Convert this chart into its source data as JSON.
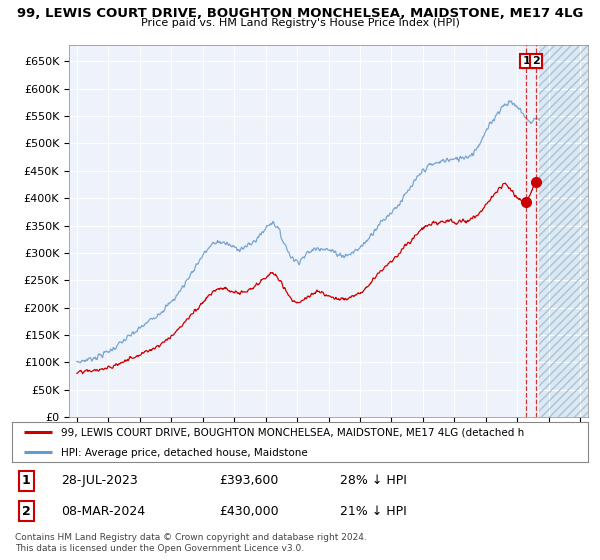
{
  "title": "99, LEWIS COURT DRIVE, BOUGHTON MONCHELSEA, MAIDSTONE, ME17 4LG",
  "subtitle": "Price paid vs. HM Land Registry's House Price Index (HPI)",
  "ylim": [
    0,
    680000
  ],
  "yticks": [
    0,
    50000,
    100000,
    150000,
    200000,
    250000,
    300000,
    350000,
    400000,
    450000,
    500000,
    550000,
    600000,
    650000
  ],
  "ytick_labels": [
    "£0",
    "£50K",
    "£100K",
    "£150K",
    "£200K",
    "£250K",
    "£300K",
    "£350K",
    "£400K",
    "£450K",
    "£500K",
    "£550K",
    "£600K",
    "£650K"
  ],
  "hpi_color": "#6699cc",
  "price_color": "#cc0000",
  "marker_color": "#cc0000",
  "dashed_color": "#cc2222",
  "background_plot": "#eef2fa",
  "grid_color": "#ffffff",
  "legend_label_price": "99, LEWIS COURT DRIVE, BOUGHTON MONCHELSEA, MAIDSTONE, ME17 4LG (detached h",
  "legend_label_hpi": "HPI: Average price, detached house, Maidstone",
  "transaction1_label": "1",
  "transaction1_date": "28-JUL-2023",
  "transaction1_price": "£393,600",
  "transaction1_hpi": "28% ↓ HPI",
  "transaction2_label": "2",
  "transaction2_date": "08-MAR-2024",
  "transaction2_price": "£430,000",
  "transaction2_hpi": "21% ↓ HPI",
  "copyright_text": "Contains HM Land Registry data © Crown copyright and database right 2024.\nThis data is licensed under the Open Government Licence v3.0.",
  "xlim_start": 1994.5,
  "xlim_end": 2027.5,
  "xticks": [
    1995,
    1997,
    1999,
    2001,
    2003,
    2005,
    2007,
    2009,
    2011,
    2013,
    2015,
    2017,
    2019,
    2021,
    2023,
    2025,
    2027
  ],
  "transaction1_year": 2023.57,
  "transaction2_year": 2024.18,
  "transaction1_value": 393600,
  "transaction2_value": 430000,
  "hatch_start": 2024.4,
  "hpi_anchors": [
    [
      1995.0,
      100000
    ],
    [
      1996.0,
      108000
    ],
    [
      1997.0,
      120000
    ],
    [
      1998.0,
      140000
    ],
    [
      1999.0,
      162000
    ],
    [
      2000.0,
      185000
    ],
    [
      2001.0,
      210000
    ],
    [
      2002.0,
      250000
    ],
    [
      2003.0,
      295000
    ],
    [
      2004.0,
      320000
    ],
    [
      2005.0,
      310000
    ],
    [
      2006.0,
      315000
    ],
    [
      2007.0,
      345000
    ],
    [
      2007.5,
      355000
    ],
    [
      2008.0,
      330000
    ],
    [
      2008.5,
      300000
    ],
    [
      2009.0,
      285000
    ],
    [
      2009.5,
      295000
    ],
    [
      2010.0,
      305000
    ],
    [
      2010.5,
      310000
    ],
    [
      2011.0,
      305000
    ],
    [
      2011.5,
      300000
    ],
    [
      2012.0,
      295000
    ],
    [
      2012.5,
      300000
    ],
    [
      2013.0,
      310000
    ],
    [
      2013.5,
      325000
    ],
    [
      2014.0,
      345000
    ],
    [
      2014.5,
      360000
    ],
    [
      2015.0,
      375000
    ],
    [
      2015.5,
      390000
    ],
    [
      2016.0,
      410000
    ],
    [
      2016.5,
      430000
    ],
    [
      2017.0,
      450000
    ],
    [
      2017.5,
      460000
    ],
    [
      2018.0,
      465000
    ],
    [
      2018.5,
      470000
    ],
    [
      2019.0,
      470000
    ],
    [
      2019.5,
      475000
    ],
    [
      2020.0,
      478000
    ],
    [
      2020.5,
      495000
    ],
    [
      2021.0,
      520000
    ],
    [
      2021.5,
      545000
    ],
    [
      2022.0,
      565000
    ],
    [
      2022.5,
      575000
    ],
    [
      2022.8,
      572000
    ],
    [
      2023.0,
      565000
    ],
    [
      2023.3,
      558000
    ],
    [
      2023.57,
      545000
    ],
    [
      2023.8,
      540000
    ],
    [
      2024.0,
      542000
    ],
    [
      2024.18,
      545000
    ],
    [
      2024.4,
      542000
    ]
  ],
  "price_anchors": [
    [
      1995.0,
      80000
    ],
    [
      1996.0,
      85000
    ],
    [
      1997.0,
      90000
    ],
    [
      1998.0,
      102000
    ],
    [
      1999.0,
      115000
    ],
    [
      2000.0,
      128000
    ],
    [
      2001.0,
      148000
    ],
    [
      2002.0,
      178000
    ],
    [
      2003.0,
      210000
    ],
    [
      2004.0,
      235000
    ],
    [
      2005.0,
      228000
    ],
    [
      2006.0,
      232000
    ],
    [
      2007.0,
      255000
    ],
    [
      2007.5,
      262000
    ],
    [
      2008.0,
      245000
    ],
    [
      2008.5,
      222000
    ],
    [
      2009.0,
      210000
    ],
    [
      2009.5,
      215000
    ],
    [
      2010.0,
      225000
    ],
    [
      2010.5,
      228000
    ],
    [
      2011.0,
      222000
    ],
    [
      2011.5,
      218000
    ],
    [
      2012.0,
      215000
    ],
    [
      2012.5,
      220000
    ],
    [
      2013.0,
      228000
    ],
    [
      2013.5,
      240000
    ],
    [
      2014.0,
      258000
    ],
    [
      2014.5,
      272000
    ],
    [
      2015.0,
      285000
    ],
    [
      2015.5,
      300000
    ],
    [
      2016.0,
      315000
    ],
    [
      2016.5,
      330000
    ],
    [
      2017.0,
      345000
    ],
    [
      2017.5,
      352000
    ],
    [
      2018.0,
      355000
    ],
    [
      2018.5,
      358000
    ],
    [
      2019.0,
      355000
    ],
    [
      2019.5,
      358000
    ],
    [
      2020.0,
      360000
    ],
    [
      2020.5,
      370000
    ],
    [
      2021.0,
      388000
    ],
    [
      2021.5,
      405000
    ],
    [
      2022.0,
      420000
    ],
    [
      2022.3,
      425000
    ],
    [
      2022.6,
      415000
    ],
    [
      2022.8,
      405000
    ],
    [
      2023.0,
      400000
    ],
    [
      2023.3,
      395000
    ],
    [
      2023.57,
      393600
    ],
    [
      2023.8,
      405000
    ],
    [
      2024.0,
      420000
    ],
    [
      2024.18,
      430000
    ]
  ]
}
